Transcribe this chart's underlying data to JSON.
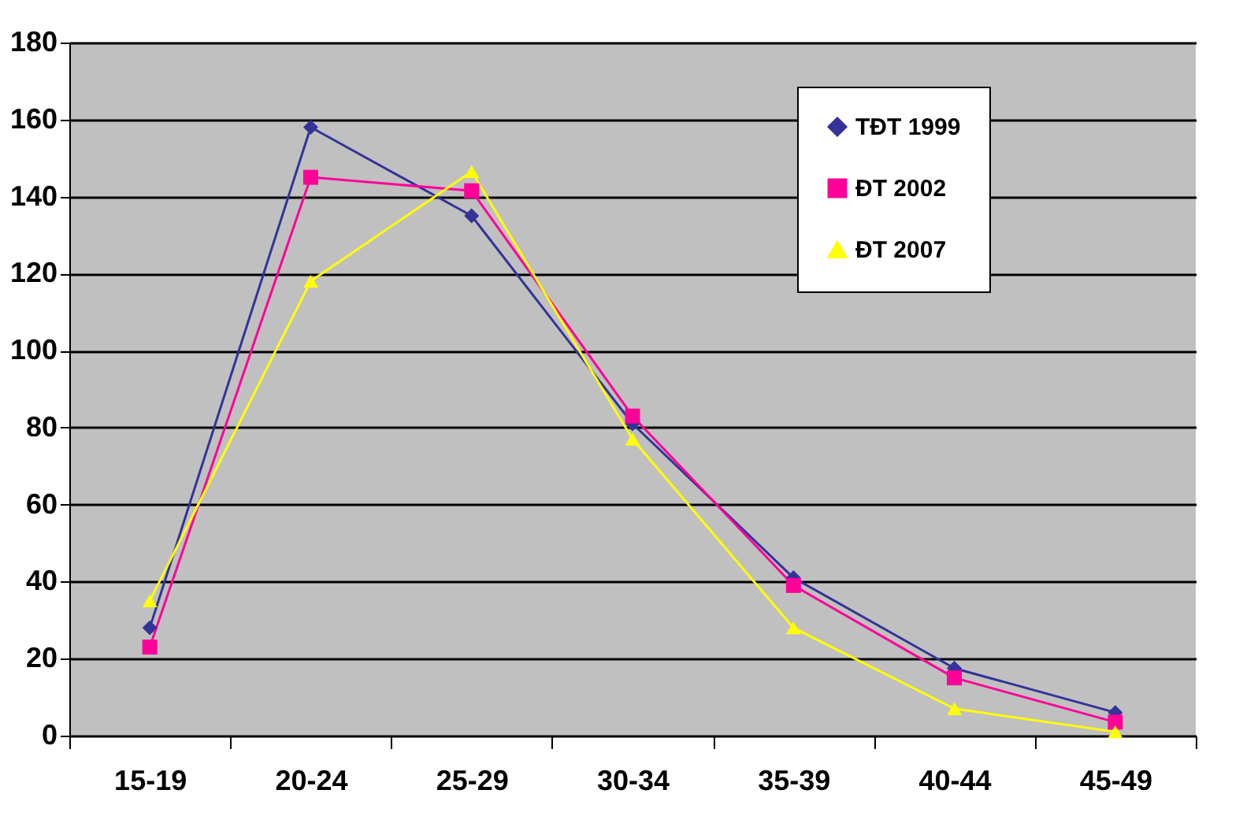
{
  "chart_data": {
    "type": "line",
    "categories": [
      "15-19",
      "20-24",
      "25-29",
      "30-34",
      "35-39",
      "40-44",
      "45-49"
    ],
    "series": [
      {
        "name": "TĐT 1999",
        "color": "#333399",
        "marker": "diamond",
        "values": [
          28,
          158,
          135,
          81,
          41,
          17.5,
          6
        ]
      },
      {
        "name": "ĐT 2002",
        "color": "#ff0099",
        "marker": "square",
        "values": [
          23,
          145,
          141.5,
          83,
          39,
          15,
          3.5
        ]
      },
      {
        "name": "ĐT 2007",
        "color": "#ffff00",
        "marker": "triangle",
        "values": [
          35,
          118,
          146.5,
          77,
          28,
          7,
          1
        ]
      }
    ],
    "ylim": [
      0,
      180
    ],
    "yticks": [
      0,
      20,
      40,
      60,
      80,
      100,
      120,
      140,
      160,
      180
    ],
    "grid": "y",
    "legend": "top right"
  }
}
